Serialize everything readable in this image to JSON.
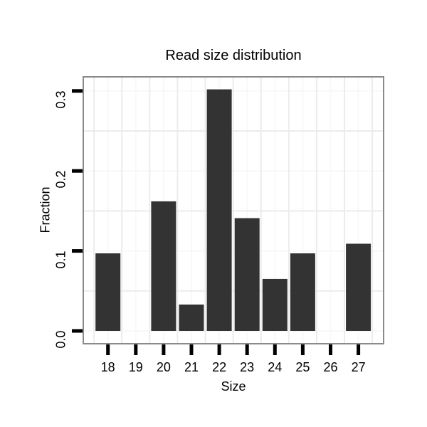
{
  "chart_data": {
    "type": "bar",
    "title": "Read size distribution",
    "xlabel": "Size",
    "ylabel": "Fraction",
    "categories": [
      "18",
      "19",
      "20",
      "21",
      "22",
      "23",
      "24",
      "25",
      "26",
      "27"
    ],
    "values": [
      0.097,
      0,
      0.162,
      0.033,
      0.302,
      0.141,
      0.065,
      0.097,
      0,
      0.109
    ],
    "yticks": [
      0.0,
      0.1,
      0.2,
      0.3
    ],
    "ytick_labels": [
      "0.0",
      "0.1",
      "0.2",
      "0.3"
    ],
    "yminor_gridlines": [
      0.05,
      0.15,
      0.25
    ],
    "ylim": [
      -0.015,
      0.317
    ],
    "grid": "on",
    "legend": "none",
    "colors": {
      "bar": "#333333",
      "panel_border": "#8a8a8a",
      "grid_minor": "#ececec",
      "grid_major": "#f8f8f8",
      "tick": "#000000",
      "text": "#000000",
      "background": "#ffffff"
    }
  }
}
